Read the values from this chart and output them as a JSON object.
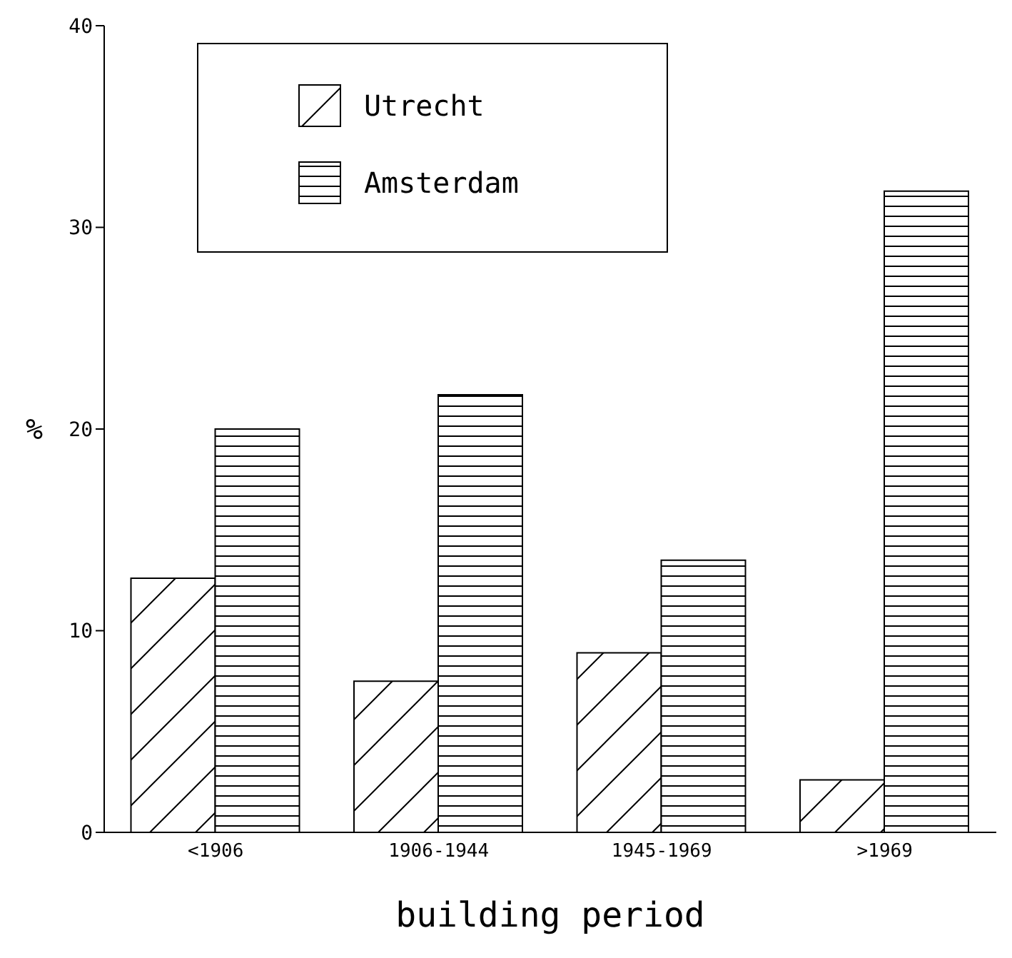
{
  "chart_data": {
    "type": "bar",
    "xlabel": "building period",
    "ylabel": "%",
    "categories": [
      "<1906",
      "1906-1944",
      "1945-1969",
      ">1969"
    ],
    "series": [
      {
        "name": "Utrecht",
        "color": "#000000",
        "values": [
          12.6,
          7.5,
          8.9,
          2.6
        ]
      },
      {
        "name": "Amsterdam",
        "color": "#000000",
        "values": [
          20.0,
          21.7,
          13.5,
          31.8
        ]
      }
    ],
    "ylim": [
      0,
      40
    ],
    "yticks": [
      0,
      10,
      20,
      30,
      40
    ],
    "grid": false,
    "legend": "top left"
  }
}
